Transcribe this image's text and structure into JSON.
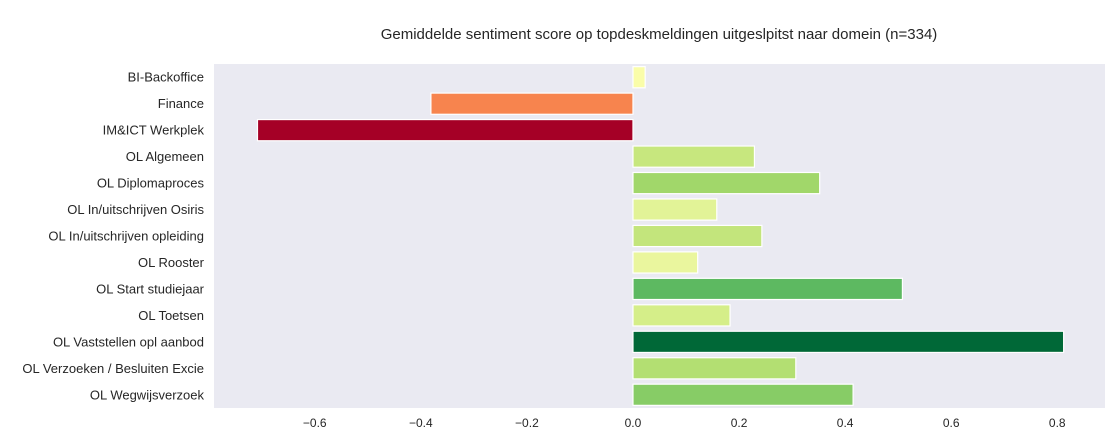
{
  "chart_data": {
    "type": "bar",
    "orientation": "horizontal",
    "title": "Gemiddelde sentiment score op topdeskmeldingen uitgeslpitst naar domein (n=334)",
    "xlabel": "",
    "ylabel": "",
    "grid": false,
    "xlim": [
      -0.79,
      0.89
    ],
    "xticks": [
      -0.6,
      -0.4,
      -0.2,
      0.0,
      0.2,
      0.4,
      0.6,
      0.8
    ],
    "xtick_labels": [
      "−0.6",
      "−0.4",
      "−0.2",
      "0.0",
      "0.2",
      "0.4",
      "0.6",
      "0.8"
    ],
    "categories": [
      "BI-Backoffice",
      "Finance",
      "IM&ICT Werkplek",
      "OL Algemeen",
      "OL Diplomaproces",
      "OL In/uitschrijven Osiris",
      "OL In/uitschrijven opleiding",
      "OL Rooster",
      "OL Start studiejaar",
      "OL Toetsen",
      "OL Vaststellen opl aanbod",
      "OL Verzoeken / Besluiten Excie",
      "OL Wegwijsverzoek"
    ],
    "values": [
      0.023,
      -0.381,
      -0.708,
      0.229,
      0.352,
      0.158,
      0.243,
      0.122,
      0.508,
      0.183,
      0.812,
      0.307,
      0.415
    ],
    "colors": [
      "#fafda9",
      "#f7844e",
      "#a50026",
      "#c7e77e",
      "#a1d76a",
      "#e2f397",
      "#c3e57c",
      "#eaf69e",
      "#5db961",
      "#d5ee89",
      "#006837",
      "#b3df72",
      "#87cc66"
    ],
    "plot_background": "#eaeaf2"
  }
}
